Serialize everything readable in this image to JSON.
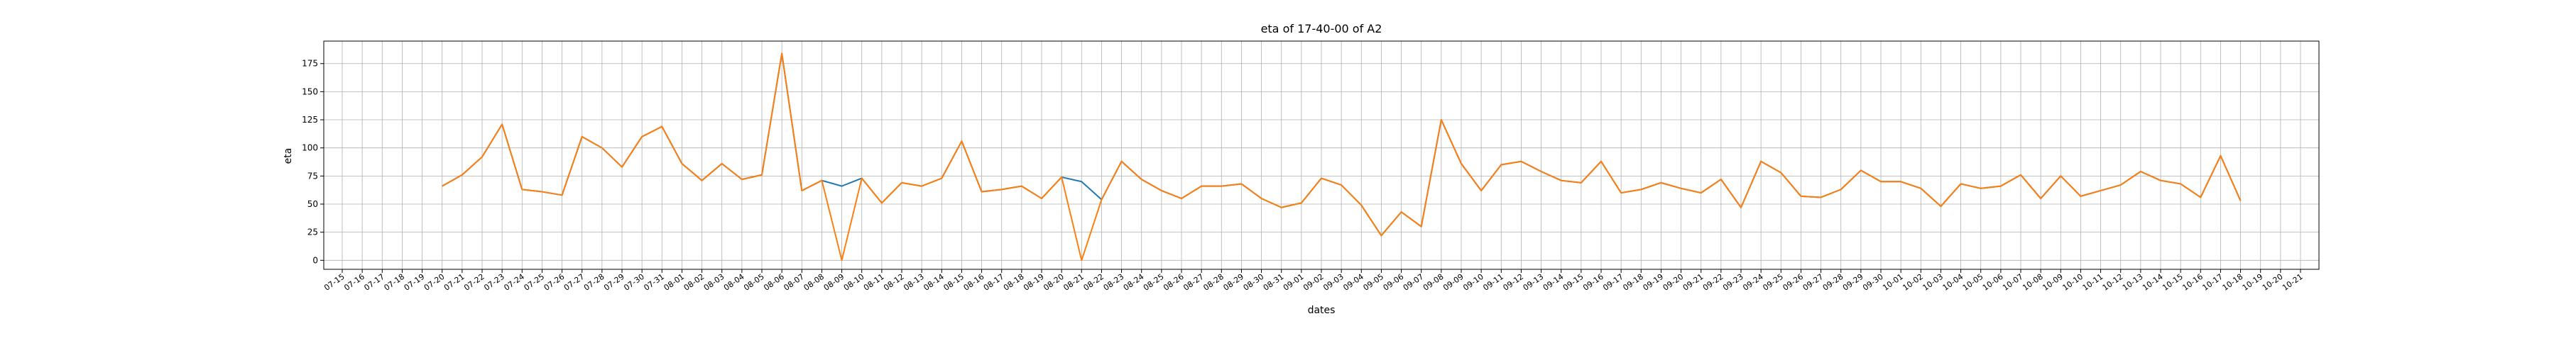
{
  "chart_data": {
    "type": "line",
    "title": "eta of 17-40-00 of A2",
    "xlabel": "dates",
    "ylabel": "eta",
    "ylim": [
      -8,
      195
    ],
    "yticks": [
      0,
      25,
      50,
      75,
      100,
      125,
      150,
      175
    ],
    "grid": true,
    "x_categories": [
      "07-15",
      "07-16",
      "07-17",
      "07-18",
      "07-19",
      "07-20",
      "07-21",
      "07-22",
      "07-23",
      "07-24",
      "07-25",
      "07-26",
      "07-27",
      "07-28",
      "07-29",
      "07-30",
      "07-31",
      "08-01",
      "08-02",
      "08-03",
      "08-04",
      "08-05",
      "08-06",
      "08-07",
      "08-08",
      "08-09",
      "08-10",
      "08-11",
      "08-12",
      "08-13",
      "08-14",
      "08-15",
      "08-16",
      "08-17",
      "08-18",
      "08-19",
      "08-20",
      "08-21",
      "08-22",
      "08-23",
      "08-24",
      "08-25",
      "08-26",
      "08-27",
      "08-28",
      "08-29",
      "08-30",
      "08-31",
      "09-01",
      "09-02",
      "09-03",
      "09-04",
      "09-05",
      "09-06",
      "09-07",
      "09-08",
      "09-09",
      "09-10",
      "09-11",
      "09-12",
      "09-13",
      "09-14",
      "09-15",
      "09-16",
      "09-17",
      "09-18",
      "09-19",
      "09-20",
      "09-21",
      "09-22",
      "09-23",
      "09-24",
      "09-25",
      "09-26",
      "09-27",
      "09-28",
      "09-29",
      "09-30",
      "10-01",
      "10-02",
      "10-03",
      "10-04",
      "10-05",
      "10-06",
      "10-07",
      "10-08",
      "10-09",
      "10-10",
      "10-11",
      "10-12",
      "10-13",
      "10-14",
      "10-15",
      "10-16",
      "10-17",
      "10-18",
      "10-19",
      "10-20",
      "10-21"
    ],
    "series": [
      {
        "color": "#1f77b4",
        "points": [
          [
            "07-20",
            66
          ],
          [
            "07-21",
            76
          ],
          [
            "07-22",
            92
          ],
          [
            "07-23",
            121
          ],
          [
            "07-24",
            63
          ],
          [
            "07-25",
            61
          ],
          [
            "07-26",
            58
          ],
          [
            "07-27",
            110
          ],
          [
            "07-28",
            100
          ],
          [
            "07-29",
            83
          ],
          [
            "07-30",
            110
          ],
          [
            "07-31",
            119
          ],
          [
            "08-01",
            86
          ],
          [
            "08-02",
            71
          ],
          [
            "08-03",
            86
          ],
          [
            "08-04",
            72
          ],
          [
            "08-05",
            76
          ],
          [
            "08-06",
            184
          ],
          [
            "08-07",
            62
          ],
          [
            "08-08",
            71
          ],
          [
            "08-09",
            66
          ],
          [
            "08-10",
            73
          ],
          [
            "08-11",
            51
          ],
          [
            "08-12",
            69
          ],
          [
            "08-13",
            66
          ],
          [
            "08-14",
            73
          ],
          [
            "08-15",
            106
          ],
          [
            "08-16",
            61
          ],
          [
            "08-17",
            63
          ],
          [
            "08-18",
            66
          ],
          [
            "08-19",
            55
          ],
          [
            "08-20",
            74
          ],
          [
            "08-21",
            70
          ],
          [
            "08-22",
            54
          ],
          [
            "08-23",
            88
          ],
          [
            "08-24",
            72
          ],
          [
            "08-25",
            62
          ],
          [
            "08-26",
            55
          ],
          [
            "08-27",
            66
          ],
          [
            "08-28",
            66
          ],
          [
            "08-29",
            68
          ],
          [
            "08-30",
            55
          ],
          [
            "08-31",
            47
          ],
          [
            "09-01",
            51
          ],
          [
            "09-02",
            73
          ],
          [
            "09-03",
            67
          ],
          [
            "09-04",
            49
          ],
          [
            "09-05",
            22
          ],
          [
            "09-06",
            43
          ],
          [
            "09-07",
            30
          ],
          [
            "09-08",
            125
          ],
          [
            "09-09",
            86
          ],
          [
            "09-10",
            62
          ],
          [
            "09-11",
            85
          ],
          [
            "09-12",
            88
          ],
          [
            "09-13",
            79
          ],
          [
            "09-14",
            71
          ],
          [
            "09-15",
            69
          ],
          [
            "09-16",
            88
          ],
          [
            "09-17",
            60
          ],
          [
            "09-18",
            63
          ],
          [
            "09-19",
            69
          ],
          [
            "09-20",
            64
          ],
          [
            "09-21",
            60
          ],
          [
            "09-22",
            72
          ],
          [
            "09-23",
            47
          ],
          [
            "09-24",
            88
          ],
          [
            "09-25",
            78
          ],
          [
            "09-26",
            57
          ],
          [
            "09-27",
            56
          ],
          [
            "09-28",
            63
          ],
          [
            "09-29",
            80
          ],
          [
            "09-30",
            70
          ],
          [
            "10-01",
            70
          ],
          [
            "10-02",
            64
          ],
          [
            "10-03",
            48
          ],
          [
            "10-04",
            68
          ],
          [
            "10-05",
            64
          ],
          [
            "10-06",
            66
          ],
          [
            "10-07",
            76
          ],
          [
            "10-08",
            55
          ],
          [
            "10-09",
            75
          ],
          [
            "10-10",
            57
          ],
          [
            "10-11",
            62
          ],
          [
            "10-12",
            67
          ],
          [
            "10-13",
            79
          ],
          [
            "10-14",
            71
          ],
          [
            "10-15",
            68
          ],
          [
            "10-16",
            56
          ],
          [
            "10-17",
            93
          ],
          [
            "10-18",
            53
          ]
        ]
      },
      {
        "color": "#ff7f0e",
        "points": [
          [
            "07-20",
            66
          ],
          [
            "07-21",
            76
          ],
          [
            "07-22",
            92
          ],
          [
            "07-23",
            121
          ],
          [
            "07-24",
            63
          ],
          [
            "07-25",
            61
          ],
          [
            "07-26",
            58
          ],
          [
            "07-27",
            110
          ],
          [
            "07-28",
            100
          ],
          [
            "07-29",
            83
          ],
          [
            "07-30",
            110
          ],
          [
            "07-31",
            119
          ],
          [
            "08-01",
            86
          ],
          [
            "08-02",
            71
          ],
          [
            "08-03",
            86
          ],
          [
            "08-04",
            72
          ],
          [
            "08-05",
            76
          ],
          [
            "08-06",
            184
          ],
          [
            "08-07",
            62
          ],
          [
            "08-08",
            71
          ],
          [
            "08-09",
            0
          ],
          [
            "08-10",
            73
          ],
          [
            "08-11",
            51
          ],
          [
            "08-12",
            69
          ],
          [
            "08-13",
            66
          ],
          [
            "08-14",
            73
          ],
          [
            "08-15",
            106
          ],
          [
            "08-16",
            61
          ],
          [
            "08-17",
            63
          ],
          [
            "08-18",
            66
          ],
          [
            "08-19",
            55
          ],
          [
            "08-20",
            74
          ],
          [
            "08-21",
            0
          ],
          [
            "08-22",
            54
          ],
          [
            "08-23",
            88
          ],
          [
            "08-24",
            72
          ],
          [
            "08-25",
            62
          ],
          [
            "08-26",
            55
          ],
          [
            "08-27",
            66
          ],
          [
            "08-28",
            66
          ],
          [
            "08-29",
            68
          ],
          [
            "08-30",
            55
          ],
          [
            "08-31",
            47
          ],
          [
            "09-01",
            51
          ],
          [
            "09-02",
            73
          ],
          [
            "09-03",
            67
          ],
          [
            "09-04",
            49
          ],
          [
            "09-05",
            22
          ],
          [
            "09-06",
            43
          ],
          [
            "09-07",
            30
          ],
          [
            "09-08",
            125
          ],
          [
            "09-09",
            86
          ],
          [
            "09-10",
            62
          ],
          [
            "09-11",
            85
          ],
          [
            "09-12",
            88
          ],
          [
            "09-13",
            79
          ],
          [
            "09-14",
            71
          ],
          [
            "09-15",
            69
          ],
          [
            "09-16",
            88
          ],
          [
            "09-17",
            60
          ],
          [
            "09-18",
            63
          ],
          [
            "09-19",
            69
          ],
          [
            "09-20",
            64
          ],
          [
            "09-21",
            60
          ],
          [
            "09-22",
            72
          ],
          [
            "09-23",
            47
          ],
          [
            "09-24",
            88
          ],
          [
            "09-25",
            78
          ],
          [
            "09-26",
            57
          ],
          [
            "09-27",
            56
          ],
          [
            "09-28",
            63
          ],
          [
            "09-29",
            80
          ],
          [
            "09-30",
            70
          ],
          [
            "10-01",
            70
          ],
          [
            "10-02",
            64
          ],
          [
            "10-03",
            48
          ],
          [
            "10-04",
            68
          ],
          [
            "10-05",
            64
          ],
          [
            "10-06",
            66
          ],
          [
            "10-07",
            76
          ],
          [
            "10-08",
            55
          ],
          [
            "10-09",
            75
          ],
          [
            "10-10",
            57
          ],
          [
            "10-11",
            62
          ],
          [
            "10-12",
            67
          ],
          [
            "10-13",
            79
          ],
          [
            "10-14",
            71
          ],
          [
            "10-15",
            68
          ],
          [
            "10-16",
            56
          ],
          [
            "10-17",
            93
          ],
          [
            "10-18",
            53
          ]
        ]
      }
    ]
  }
}
